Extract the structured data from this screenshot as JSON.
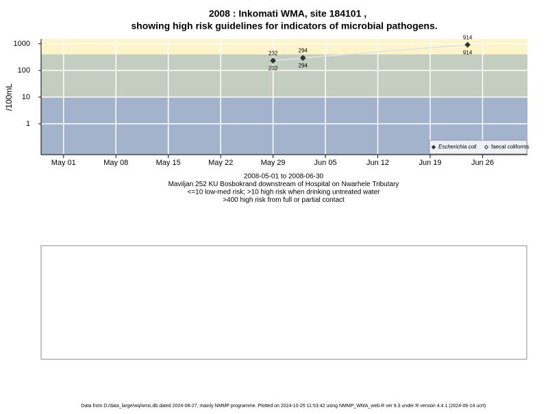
{
  "chart_data": {
    "type": "line",
    "title": "2008 : Inkomati WMA, site 184101 ,",
    "title_line2": "showing high risk guidelines for indicators of microbial pathogens.",
    "y_label": "/100mL",
    "notes": [
      "2008-05-01 to 2008-06-30",
      "Maviljan 252 KU Bosbokrand downstream of Hospital on Nwarhele Tributary",
      "<=10 low-med risk; >10 high risk when drinking untreated water",
      ">400 high risk from full or partial contact"
    ],
    "footer": "Data from D:/data_large/wq/wms.db dated 2024-08-27, mainly NMMP programme. Plotted on 2024-10-25 11:53:42 using NMMP_WMA_web.R ver 9.3 under R version 4.4.1 (2024-06-14 ucrt)",
    "log_y": true,
    "xlim": [
      "2008-04-28",
      "2008-07-02"
    ],
    "xticks": [
      {
        "value": "2008-05-01",
        "label": "May 01"
      },
      {
        "value": "2008-05-08",
        "label": "May 08"
      },
      {
        "value": "2008-05-15",
        "label": "May 15"
      },
      {
        "value": "2008-05-22",
        "label": "May 22"
      },
      {
        "value": "2008-05-29",
        "label": "May 29"
      },
      {
        "value": "2008-06-05",
        "label": "Jun 05"
      },
      {
        "value": "2008-06-12",
        "label": "Jun 12"
      },
      {
        "value": "2008-06-19",
        "label": "Jun 19"
      },
      {
        "value": "2008-06-26",
        "label": "Jun 26"
      }
    ],
    "ylim": [
      0.07,
      1500
    ],
    "yticks": [
      1,
      10,
      100,
      1000
    ],
    "grid": true,
    "thresholds": [
      10,
      400
    ],
    "band_colors": [
      "#a2b3cb",
      "#c3cdc0",
      "#fdf5c9"
    ],
    "line_color": "#e4e4e4",
    "legend_position": "bottom-right",
    "x": [
      "2008-05-29",
      "2008-06-02",
      "2008-06-24"
    ],
    "series": [
      {
        "name": "Escherichia coli",
        "color": "#333333",
        "marker": "filled",
        "label_position": "above",
        "values": [
          232,
          294,
          914
        ]
      },
      {
        "name": "faecal coliforms",
        "color": "#333333",
        "marker": "open",
        "label_position": "below",
        "values": [
          232,
          294,
          914
        ]
      }
    ]
  }
}
